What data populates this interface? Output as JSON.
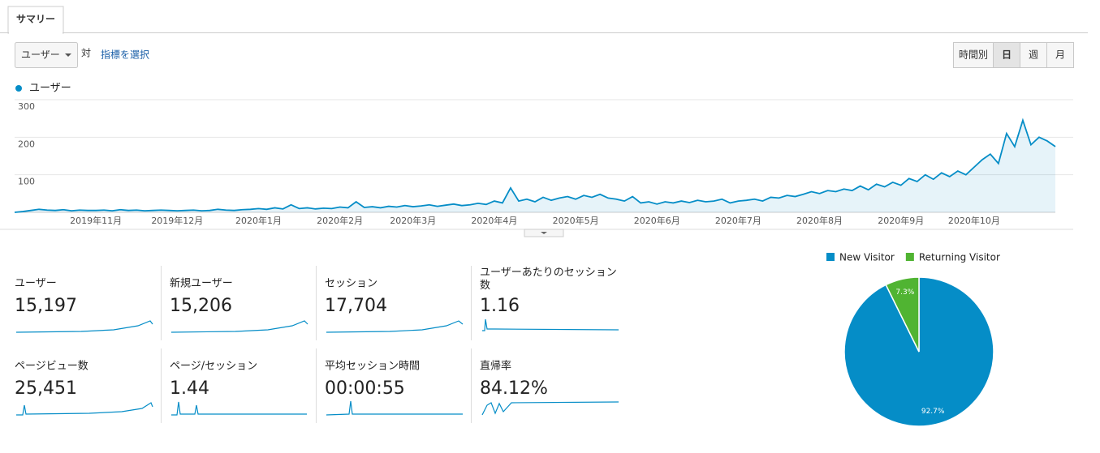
{
  "tab": "サマリー",
  "metric_select": "ユーザー",
  "vs": "対",
  "select_metric": "指標を選択",
  "granularity": [
    "時間別",
    "日",
    "週",
    "月"
  ],
  "scorecards": [
    {
      "label": "ユーザー",
      "value": "15,197"
    },
    {
      "label": "新規ユーザー",
      "value": "15,206"
    },
    {
      "label": "セッション",
      "value": "17,704"
    },
    {
      "label": "ユーザーあたりのセッション数",
      "value": "1.16"
    },
    {
      "label": "ページビュー数",
      "value": "25,451"
    },
    {
      "label": "ページ/セッション",
      "value": "1.44"
    },
    {
      "label": "平均セッション時間",
      "value": "00:00:55"
    },
    {
      "label": "直帰率",
      "value": "84.12%"
    }
  ],
  "chart_data": [
    {
      "type": "line",
      "categories": [
        null,
        null,
        null,
        null,
        null,
        null,
        null,
        null,
        null,
        null,
        "2019年11月",
        null,
        null,
        null,
        null,
        null,
        null,
        null,
        null,
        null,
        "2019年12月",
        null,
        null,
        null,
        null,
        null,
        null,
        null,
        null,
        null,
        "2020年1月",
        null,
        null,
        null,
        null,
        null,
        null,
        null,
        null,
        null,
        "2020年2月",
        null,
        null,
        null,
        null,
        null,
        null,
        null,
        null,
        "2020年3月",
        null,
        null,
        null,
        null,
        null,
        null,
        null,
        null,
        null,
        "2020年4月",
        null,
        null,
        null,
        null,
        null,
        null,
        null,
        null,
        null,
        "2020年5月",
        null,
        null,
        null,
        null,
        null,
        null,
        null,
        null,
        null,
        "2020年6月",
        null,
        null,
        null,
        null,
        null,
        null,
        null,
        null,
        null,
        "2020年7月",
        null,
        null,
        null,
        null,
        null,
        null,
        null,
        null,
        null,
        "2020年8月",
        null,
        null,
        null,
        null,
        null,
        null,
        null,
        null,
        null,
        "2020年9月",
        null,
        null,
        null,
        null,
        null,
        null,
        null,
        null,
        "2020年10月",
        null,
        null,
        null,
        null,
        null,
        null,
        null,
        null,
        null,
        null
      ],
      "series": [
        {
          "name": "ユーザー",
          "color": "#058dc7",
          "values": [
            0,
            2,
            5,
            8,
            6,
            5,
            7,
            4,
            6,
            5,
            5,
            6,
            4,
            7,
            5,
            6,
            4,
            5,
            6,
            5,
            4,
            5,
            6,
            4,
            5,
            8,
            6,
            5,
            7,
            8,
            10,
            8,
            12,
            9,
            20,
            10,
            12,
            9,
            11,
            10,
            14,
            12,
            28,
            13,
            15,
            12,
            16,
            14,
            18,
            15,
            17,
            20,
            16,
            19,
            22,
            18,
            20,
            24,
            21,
            30,
            25,
            65,
            30,
            35,
            28,
            40,
            32,
            38,
            42,
            35,
            45,
            40,
            48,
            38,
            35,
            30,
            42,
            25,
            28,
            22,
            28,
            25,
            30,
            26,
            32,
            28,
            30,
            35,
            25,
            30,
            32,
            35,
            30,
            40,
            38,
            45,
            42,
            48,
            55,
            50,
            58,
            55,
            62,
            58,
            70,
            60,
            75,
            68,
            80,
            72,
            90,
            82,
            100,
            88,
            105,
            95,
            110,
            100,
            120,
            140,
            155,
            130,
            210,
            175,
            245,
            180,
            200,
            190,
            175
          ]
        }
      ],
      "ylim": [
        0,
        300
      ],
      "yticks": [
        100,
        200,
        300
      ],
      "grid": true
    },
    {
      "type": "pie",
      "categories": [
        "New Visitor",
        "Returning Visitor"
      ],
      "values": [
        92.7,
        7.3
      ],
      "value_labels": [
        "92.7%",
        "7.3%"
      ],
      "colors": [
        "#058dc7",
        "#50b432"
      ],
      "legend": "top"
    }
  ]
}
